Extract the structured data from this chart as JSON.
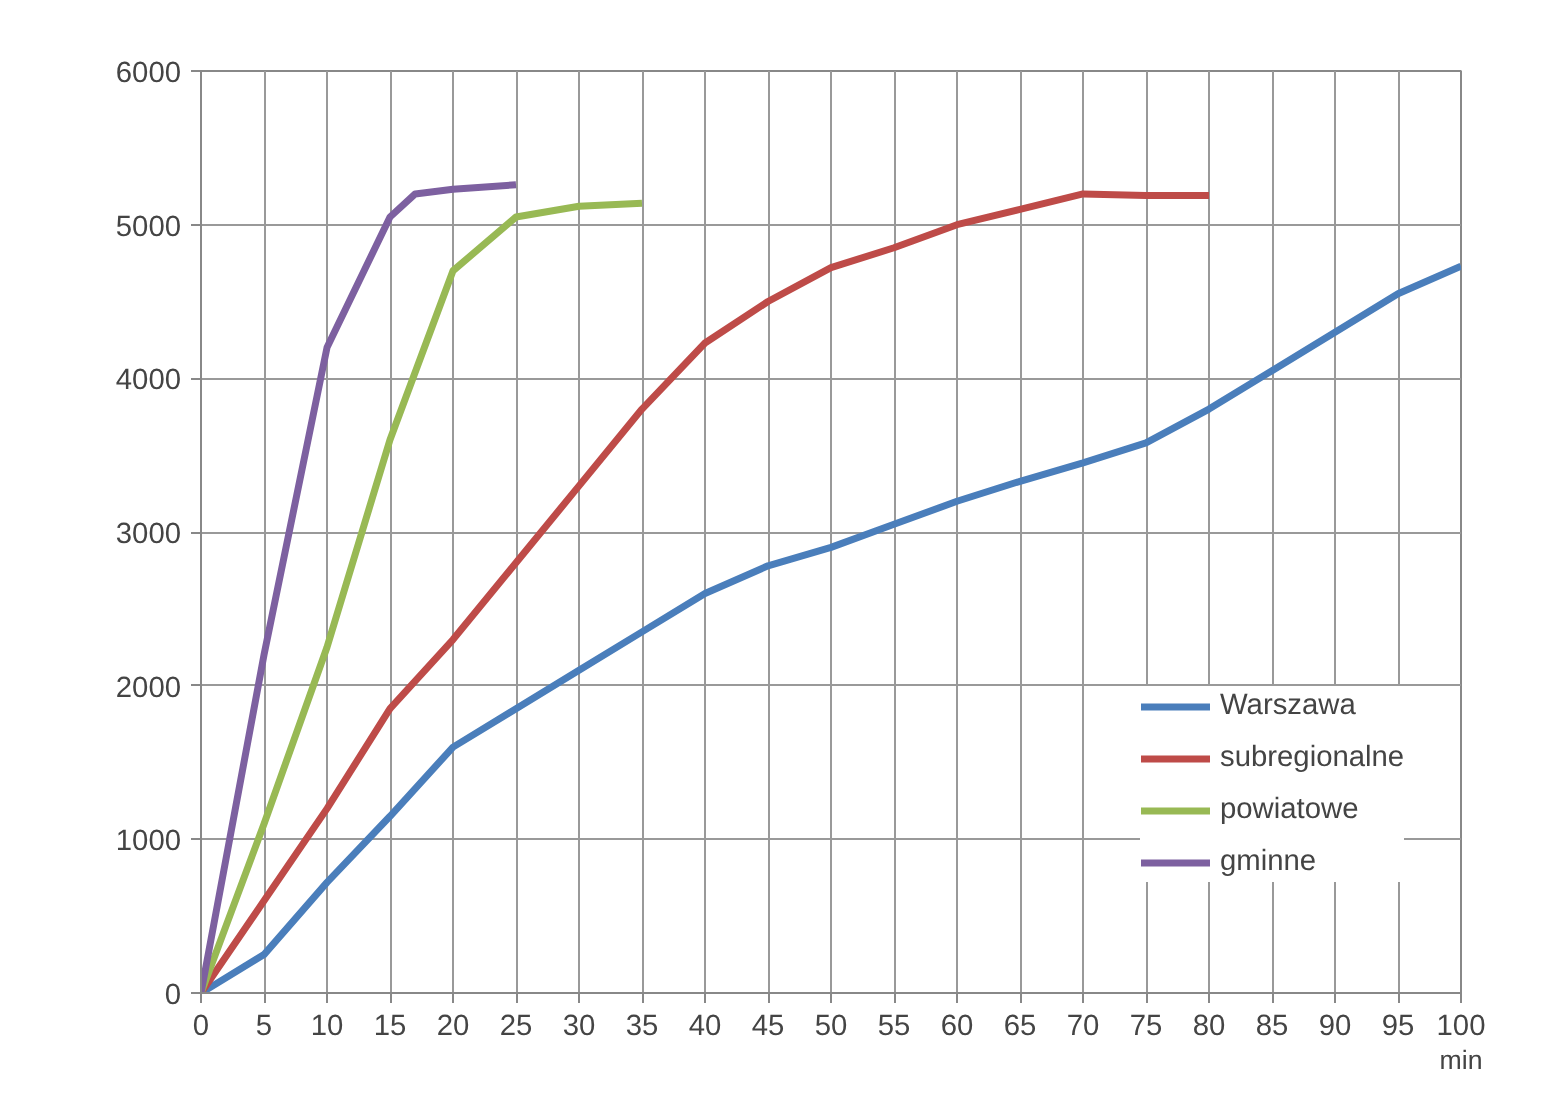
{
  "chart_data": {
    "type": "line",
    "xlabel": "min",
    "xlim": [
      0,
      100
    ],
    "xticks": [
      0,
      5,
      10,
      15,
      20,
      25,
      30,
      35,
      40,
      45,
      50,
      55,
      60,
      65,
      70,
      75,
      80,
      85,
      90,
      95,
      100
    ],
    "ylim": [
      0,
      6000
    ],
    "yticks": [
      0,
      1000,
      2000,
      3000,
      4000,
      5000,
      6000
    ],
    "grid": true,
    "legend": "bottom right",
    "marker": "none",
    "line_style": "solid",
    "series": [
      {
        "name": "Warszawa",
        "color": "#4a7ebb",
        "x": [
          0,
          5,
          10,
          15,
          20,
          25,
          30,
          35,
          40,
          45,
          50,
          55,
          60,
          65,
          70,
          75,
          80,
          85,
          90,
          95,
          100
        ],
        "values": [
          0,
          250,
          720,
          1150,
          1600,
          1850,
          2100,
          2350,
          2600,
          2780,
          2900,
          3050,
          3200,
          3330,
          3450,
          3580,
          3800,
          4050,
          4300,
          4550,
          4730
        ]
      },
      {
        "name": "subregionalne",
        "color": "#be4b48",
        "x": [
          0,
          5,
          10,
          15,
          20,
          25,
          30,
          35,
          40,
          45,
          50,
          55,
          60,
          65,
          70,
          75,
          80
        ],
        "values": [
          0,
          600,
          1200,
          1850,
          2300,
          2800,
          3300,
          3800,
          4230,
          4500,
          4720,
          4850,
          5000,
          5100,
          5200,
          5190,
          5190
        ]
      },
      {
        "name": "powiatowe",
        "color": "#98b954",
        "x": [
          0,
          5,
          10,
          15,
          20,
          25,
          30,
          35
        ],
        "values": [
          0,
          1100,
          2250,
          3600,
          4700,
          5050,
          5120,
          5140
        ]
      },
      {
        "name": "gminne",
        "color": "#7d60a0",
        "x": [
          0,
          5,
          10,
          15,
          17,
          20,
          25
        ],
        "values": [
          0,
          2200,
          4200,
          5050,
          5200,
          5230,
          5260
        ]
      }
    ]
  }
}
